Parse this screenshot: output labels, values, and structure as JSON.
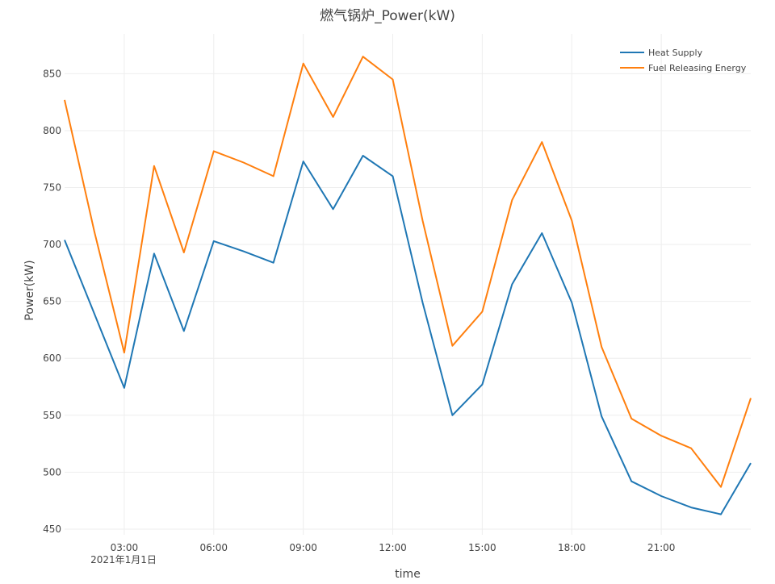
{
  "chart_data": {
    "type": "line",
    "title": "燃气锅炉_Power(kW)",
    "xlabel": "time",
    "ylabel": "Power(kW)",
    "x_ticks": [
      "03:00",
      "06:00",
      "09:00",
      "12:00",
      "15:00",
      "18:00",
      "21:00"
    ],
    "x_tick_hours": [
      3,
      6,
      9,
      12,
      15,
      18,
      21
    ],
    "x_date_label": "2021年1月1日",
    "xlim_hours": [
      1,
      24
    ],
    "y_ticks": [
      450,
      500,
      550,
      600,
      650,
      700,
      750,
      800,
      850
    ],
    "ylim": [
      445,
      885
    ],
    "grid": true,
    "legend_position": "top-right",
    "x_hours": [
      1,
      2,
      3,
      4,
      5,
      6,
      7,
      8,
      9,
      10,
      11,
      12,
      13,
      14,
      15,
      16,
      17,
      18,
      19,
      20,
      21,
      22,
      23,
      24
    ],
    "series": [
      {
        "name": "Heat Supply",
        "color": "#1f77b4",
        "values": [
          704,
          639,
          574,
          692,
          624,
          703,
          694,
          684,
          773,
          731,
          778,
          760,
          649,
          550,
          577,
          665,
          710,
          649,
          549,
          492,
          479,
          469,
          463,
          508
        ]
      },
      {
        "name": "Fuel Releasing Energy",
        "color": "#ff7f0e",
        "values": [
          827,
          711,
          605,
          769,
          693,
          782,
          772,
          760,
          859,
          812,
          865,
          845,
          721,
          611,
          641,
          739,
          790,
          721,
          610,
          547,
          532,
          521,
          487,
          565
        ]
      }
    ]
  },
  "colors": {
    "grid": "#eeeeee",
    "text": "#444444",
    "title": "#444444"
  }
}
